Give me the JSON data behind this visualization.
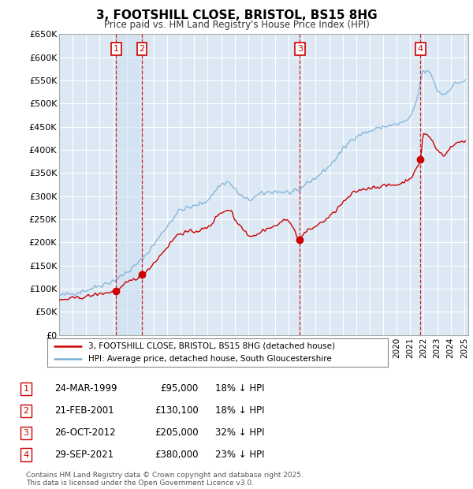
{
  "title": "3, FOOTSHILL CLOSE, BRISTOL, BS15 8HG",
  "subtitle": "Price paid vs. HM Land Registry's House Price Index (HPI)",
  "ylim": [
    0,
    650000
  ],
  "yticks": [
    0,
    50000,
    100000,
    150000,
    200000,
    250000,
    300000,
    350000,
    400000,
    450000,
    500000,
    550000,
    600000,
    650000
  ],
  "ytick_labels": [
    "£0",
    "£50K",
    "£100K",
    "£150K",
    "£200K",
    "£250K",
    "£300K",
    "£350K",
    "£400K",
    "£450K",
    "£500K",
    "£550K",
    "£600K",
    "£650K"
  ],
  "background_color": "#ffffff",
  "plot_bg_color": "#dce9f5",
  "grid_color": "#ffffff",
  "hpi_line_color": "#7bafd4",
  "sale_line_color": "#cc0000",
  "sale_marker_color": "#cc0000",
  "sales": [
    {
      "label": "1",
      "date": "24-MAR-1999",
      "year": 1999.22,
      "price": 95000,
      "pct": "18%"
    },
    {
      "label": "2",
      "date": "21-FEB-2001",
      "year": 2001.13,
      "price": 130100,
      "pct": "18%"
    },
    {
      "label": "3",
      "date": "26-OCT-2012",
      "year": 2012.82,
      "price": 205000,
      "pct": "32%"
    },
    {
      "label": "4",
      "date": "29-SEP-2021",
      "year": 2021.75,
      "price": 380000,
      "pct": "23%"
    }
  ],
  "footer_line1": "Contains HM Land Registry data © Crown copyright and database right 2025.",
  "footer_line2": "This data is licensed under the Open Government Licence v3.0.",
  "legend_label_red": "3, FOOTSHILL CLOSE, BRISTOL, BS15 8HG (detached house)",
  "legend_label_blue": "HPI: Average price, detached house, South Gloucestershire",
  "shade_between_sales": [
    0,
    1
  ]
}
